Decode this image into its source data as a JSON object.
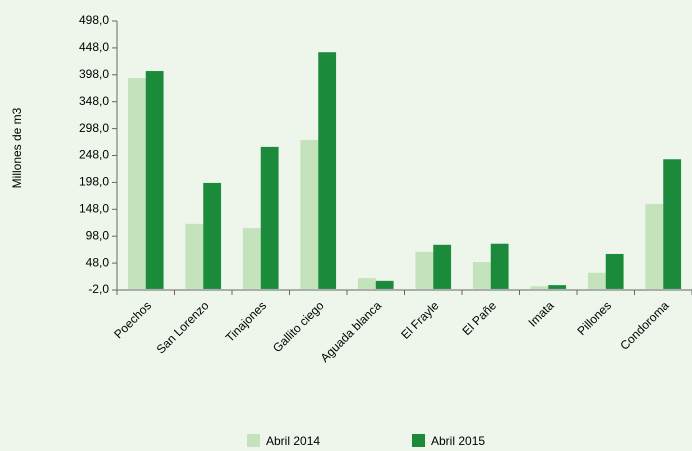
{
  "chart_data": {
    "type": "bar",
    "y_label": "Millones de m3",
    "categories": [
      "Poechos",
      "San Lorenzo",
      "Tinajones",
      "Gallito ciego",
      "Aguada blanca",
      "El Frayle",
      "El Pañe",
      "Imata",
      "Pillones",
      "Condoroma"
    ],
    "series": [
      {
        "name": "Abril 2014",
        "color": "#c4e3bd",
        "values": [
          392,
          121,
          113,
          277,
          20,
          69,
          50,
          5,
          30,
          158
        ]
      },
      {
        "name": "Abril 2015",
        "color": "#1b8a3b",
        "values": [
          405,
          197,
          264,
          440,
          15,
          82,
          84,
          7,
          65,
          241
        ]
      }
    ],
    "ylim": [
      -2,
      498
    ],
    "yticks": [
      {
        "value": -2,
        "label": "-2,0"
      },
      {
        "value": 48,
        "label": "48,0"
      },
      {
        "value": 98,
        "label": "98,0"
      },
      {
        "value": 148,
        "label": "148,0"
      },
      {
        "value": 198,
        "label": "198,0"
      },
      {
        "value": 248,
        "label": "248,0"
      },
      {
        "value": 298,
        "label": "298,0"
      },
      {
        "value": 348,
        "label": "348,0"
      },
      {
        "value": 398,
        "label": "398,0"
      },
      {
        "value": 448,
        "label": "448,0"
      },
      {
        "value": 498,
        "label": "498,0"
      }
    ],
    "grid": false,
    "legend": "bottom"
  }
}
